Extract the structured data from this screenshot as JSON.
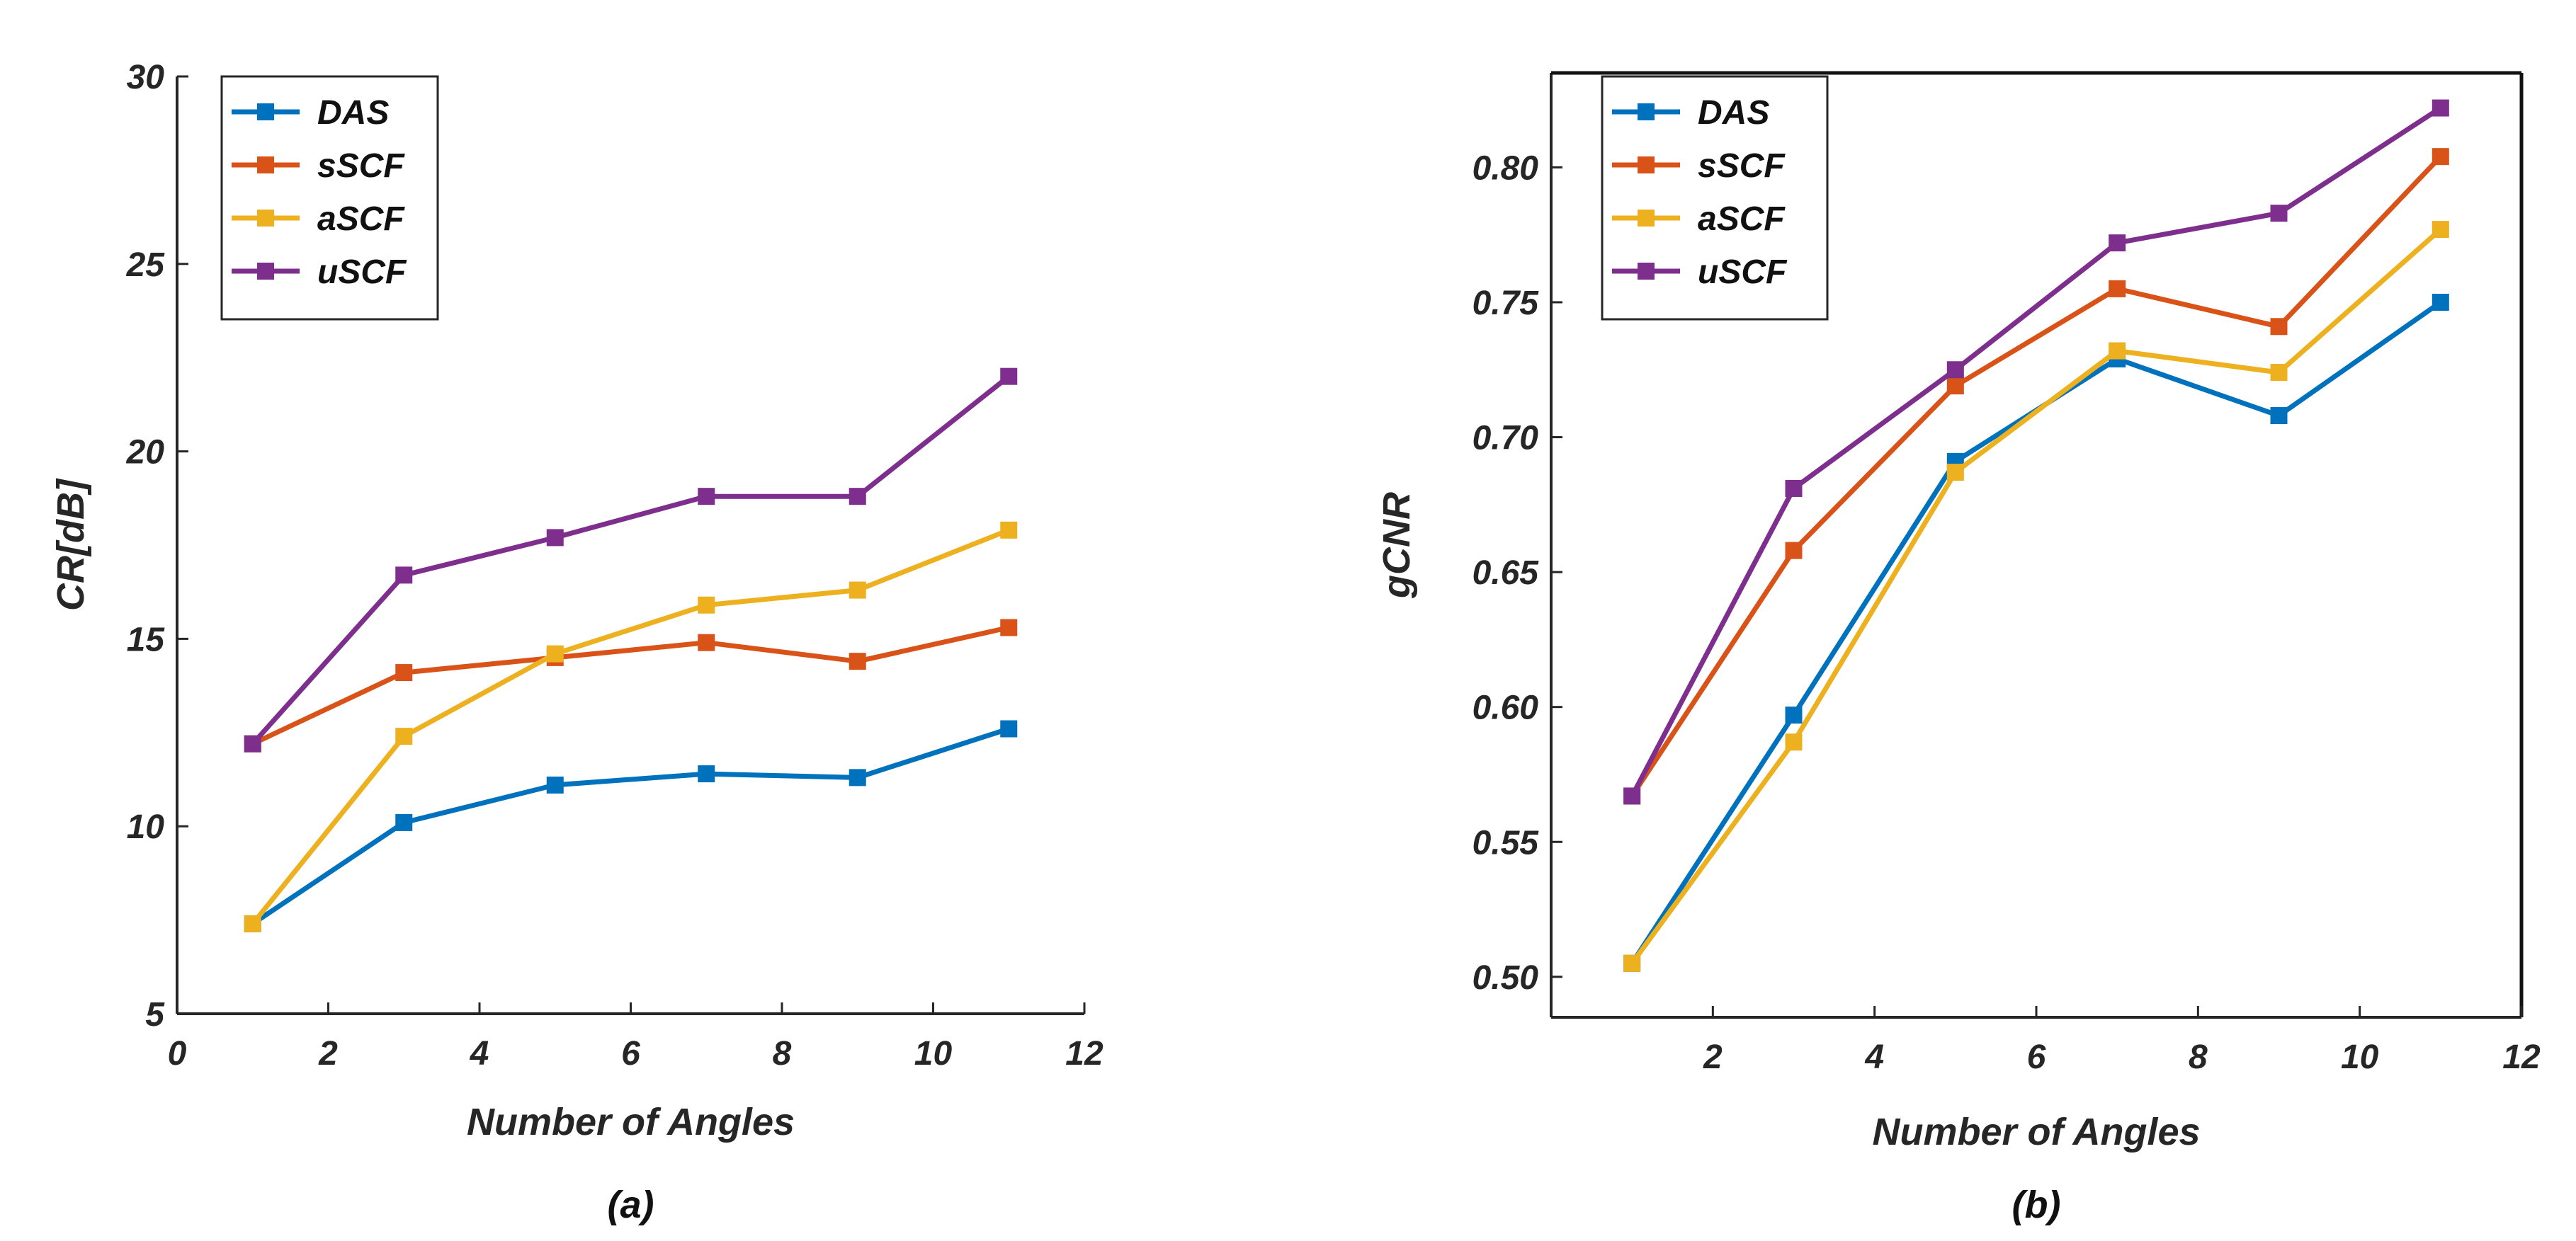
{
  "chart_data": [
    {
      "type": "line",
      "caption": "(a)",
      "title": "",
      "xlabel": "Number of Angles",
      "ylabel": "CR[dB]",
      "xlim": [
        0,
        12
      ],
      "ylim": [
        5,
        30
      ],
      "xticks": [
        0,
        2,
        4,
        6,
        8,
        10,
        12
      ],
      "yticks": [
        5,
        10,
        15,
        20,
        25,
        30
      ],
      "x": [
        1,
        3,
        5,
        7,
        9,
        11
      ],
      "legend_position": "top-left",
      "series": [
        {
          "name": "DAS",
          "color": "#0072BD",
          "values": [
            7.4,
            10.1,
            11.1,
            11.4,
            11.3,
            12.6
          ]
        },
        {
          "name": "sSCF",
          "color": "#D95319",
          "values": [
            12.2,
            14.1,
            14.5,
            14.9,
            14.4,
            15.3
          ]
        },
        {
          "name": "aSCF",
          "color": "#EDB120",
          "values": [
            7.4,
            12.4,
            14.6,
            15.9,
            16.3,
            17.9
          ]
        },
        {
          "name": "uSCF",
          "color": "#7E2F8E",
          "values": [
            12.2,
            16.7,
            17.7,
            18.8,
            18.8,
            22.0
          ]
        }
      ]
    },
    {
      "type": "line",
      "caption": "(b)",
      "title": "",
      "xlabel": "Number of Angles",
      "ylabel": "gCNR",
      "xlim": [
        0,
        12
      ],
      "ylim": [
        0.485,
        0.835
      ],
      "xticks": [
        2,
        4,
        6,
        8,
        10,
        12
      ],
      "yticks": [
        0.5,
        0.55,
        0.6,
        0.65,
        0.7,
        0.75,
        0.8
      ],
      "x": [
        1,
        3,
        5,
        7,
        9,
        11
      ],
      "legend_position": "top-left",
      "series": [
        {
          "name": "DAS",
          "color": "#0072BD",
          "values": [
            0.505,
            0.597,
            0.691,
            0.729,
            0.708,
            0.75
          ]
        },
        {
          "name": "sSCF",
          "color": "#D95319",
          "values": [
            0.567,
            0.658,
            0.719,
            0.755,
            0.741,
            0.804
          ]
        },
        {
          "name": "aSCF",
          "color": "#EDB120",
          "values": [
            0.505,
            0.587,
            0.687,
            0.732,
            0.724,
            0.777
          ]
        },
        {
          "name": "uSCF",
          "color": "#7E2F8E",
          "values": [
            0.567,
            0.681,
            0.725,
            0.772,
            0.783,
            0.822
          ]
        }
      ]
    }
  ]
}
